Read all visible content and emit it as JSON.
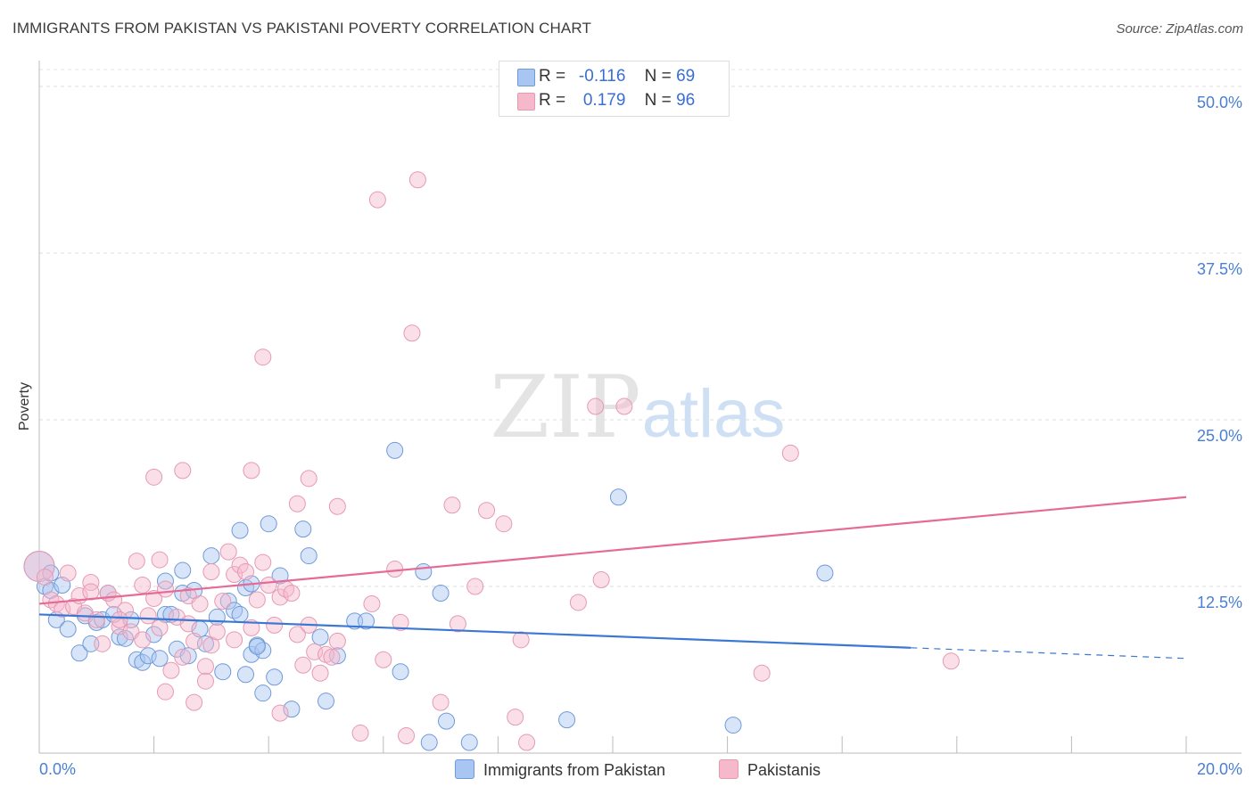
{
  "title": "IMMIGRANTS FROM PAKISTAN VS PAKISTANI POVERTY CORRELATION CHART",
  "source": "Source: ZipAtlas.com",
  "watermark": {
    "zip": "ZIP",
    "atlas": "atlas"
  },
  "legend_top": {
    "rows": [
      {
        "r_label": "R =",
        "r_value": "-0.116",
        "n_label": "N =",
        "n_value": "69",
        "color": "#a9c6f2"
      },
      {
        "r_label": "R =",
        "r_value": "0.179",
        "n_label": "N =",
        "n_value": "96",
        "color": "#f6b9cc"
      }
    ]
  },
  "legend_bottom": [
    {
      "label": "Immigrants from Pakistan",
      "color": "#a9c6f2"
    },
    {
      "label": "Pakistanis",
      "color": "#f6b9cc"
    }
  ],
  "chart_data": {
    "type": "scatter",
    "title": "IMMIGRANTS FROM PAKISTAN VS PAKISTANI POVERTY CORRELATION CHART",
    "xlabel": "",
    "ylabel": "Poverty",
    "xlim": [
      0,
      20
    ],
    "ylim": [
      0,
      50
    ],
    "x_tick_labels": [
      "0.0%",
      "20.0%"
    ],
    "y_ticks": [
      12.5,
      25.0,
      37.5,
      50.0
    ],
    "y_tick_labels": [
      "12.5%",
      "25.0%",
      "37.5%",
      "50.0%"
    ],
    "grid": "horizontal-dashed",
    "colors": {
      "blue": "#3b78d4",
      "pink": "#e56b97",
      "blue_fill": "#a9c6f2",
      "pink_fill": "#f6b9cc"
    },
    "series": [
      {
        "name": "Immigrants from Pakistan",
        "trend": {
          "x0": 0,
          "y0": 10.4,
          "x1": 15.2,
          "y1": 7.9,
          "dash_x1": 20,
          "dash_y1": 7.1
        },
        "points": [
          [
            0.0,
            14.0
          ],
          [
            0.1,
            12.5
          ],
          [
            0.2,
            12.2
          ],
          [
            0.3,
            10.0
          ],
          [
            0.5,
            9.3
          ],
          [
            0.7,
            7.5
          ],
          [
            0.8,
            10.3
          ],
          [
            0.9,
            8.2
          ],
          [
            1.0,
            9.8
          ],
          [
            1.1,
            10.0
          ],
          [
            1.2,
            12.0
          ],
          [
            1.3,
            10.4
          ],
          [
            1.4,
            8.7
          ],
          [
            1.5,
            8.6
          ],
          [
            1.6,
            10.0
          ],
          [
            1.7,
            7.0
          ],
          [
            1.8,
            6.8
          ],
          [
            1.9,
            7.3
          ],
          [
            2.0,
            8.9
          ],
          [
            2.1,
            7.1
          ],
          [
            2.2,
            10.4
          ],
          [
            2.3,
            10.4
          ],
          [
            2.4,
            7.8
          ],
          [
            2.5,
            12.0
          ],
          [
            2.5,
            13.7
          ],
          [
            2.6,
            7.3
          ],
          [
            2.7,
            12.2
          ],
          [
            2.8,
            9.3
          ],
          [
            2.9,
            8.2
          ],
          [
            3.0,
            14.8
          ],
          [
            3.1,
            10.2
          ],
          [
            3.2,
            6.1
          ],
          [
            3.3,
            11.4
          ],
          [
            3.4,
            10.7
          ],
          [
            3.5,
            10.4
          ],
          [
            3.6,
            5.9
          ],
          [
            3.7,
            7.4
          ],
          [
            3.8,
            8.1
          ],
          [
            3.9,
            7.7
          ],
          [
            3.5,
            16.7
          ],
          [
            3.6,
            12.4
          ],
          [
            3.7,
            12.7
          ],
          [
            3.8,
            8.0
          ],
          [
            3.9,
            4.5
          ],
          [
            4.0,
            17.2
          ],
          [
            4.1,
            5.7
          ],
          [
            4.2,
            13.3
          ],
          [
            4.4,
            3.3
          ],
          [
            4.6,
            16.8
          ],
          [
            4.7,
            14.8
          ],
          [
            4.9,
            8.7
          ],
          [
            5.0,
            3.9
          ],
          [
            5.2,
            7.3
          ],
          [
            5.5,
            9.9
          ],
          [
            5.7,
            9.9
          ],
          [
            6.2,
            22.7
          ],
          [
            6.3,
            6.1
          ],
          [
            6.7,
            13.6
          ],
          [
            6.8,
            0.8
          ],
          [
            7.0,
            12.0
          ],
          [
            7.1,
            2.4
          ],
          [
            7.5,
            0.8
          ],
          [
            9.2,
            2.5
          ],
          [
            10.1,
            19.2
          ],
          [
            12.1,
            2.1
          ],
          [
            13.7,
            13.5
          ],
          [
            0.2,
            13.5
          ],
          [
            0.4,
            12.6
          ],
          [
            2.2,
            12.9
          ]
        ]
      },
      {
        "name": "Pakistanis",
        "trend": {
          "x0": 0,
          "y0": 11.2,
          "x1": 20,
          "y1": 19.2
        },
        "points": [
          [
            0.0,
            14.0
          ],
          [
            0.1,
            13.2
          ],
          [
            0.2,
            11.5
          ],
          [
            0.3,
            11.2
          ],
          [
            0.4,
            10.8
          ],
          [
            0.5,
            13.5
          ],
          [
            0.6,
            11.0
          ],
          [
            0.7,
            11.8
          ],
          [
            0.8,
            10.5
          ],
          [
            0.9,
            12.8
          ],
          [
            1.0,
            10.0
          ],
          [
            1.1,
            8.2
          ],
          [
            1.2,
            12.0
          ],
          [
            1.3,
            11.5
          ],
          [
            1.4,
            9.5
          ],
          [
            1.5,
            10.7
          ],
          [
            1.6,
            9.1
          ],
          [
            1.7,
            14.4
          ],
          [
            1.8,
            8.5
          ],
          [
            1.9,
            10.3
          ],
          [
            2.0,
            11.6
          ],
          [
            2.1,
            9.4
          ],
          [
            2.2,
            12.3
          ],
          [
            2.3,
            6.2
          ],
          [
            2.4,
            10.2
          ],
          [
            2.5,
            7.2
          ],
          [
            2.6,
            11.8
          ],
          [
            2.7,
            8.4
          ],
          [
            2.8,
            11.2
          ],
          [
            2.9,
            6.5
          ],
          [
            3.0,
            8.1
          ],
          [
            3.1,
            9.1
          ],
          [
            3.2,
            11.4
          ],
          [
            3.3,
            15.1
          ],
          [
            3.4,
            13.4
          ],
          [
            3.5,
            14.1
          ],
          [
            3.6,
            13.6
          ],
          [
            3.7,
            9.4
          ],
          [
            3.8,
            11.5
          ],
          [
            3.9,
            14.3
          ],
          [
            4.0,
            12.6
          ],
          [
            4.1,
            9.6
          ],
          [
            4.2,
            11.7
          ],
          [
            4.3,
            12.3
          ],
          [
            4.4,
            12.0
          ],
          [
            4.5,
            8.9
          ],
          [
            4.6,
            6.6
          ],
          [
            4.7,
            9.6
          ],
          [
            4.8,
            7.6
          ],
          [
            4.9,
            6.0
          ],
          [
            5.0,
            7.4
          ],
          [
            5.1,
            7.2
          ],
          [
            5.2,
            8.4
          ],
          [
            2.0,
            20.7
          ],
          [
            2.5,
            21.2
          ],
          [
            3.7,
            21.2
          ],
          [
            4.5,
            18.7
          ],
          [
            4.7,
            20.6
          ],
          [
            5.2,
            18.5
          ],
          [
            2.9,
            5.4
          ],
          [
            2.7,
            3.8
          ],
          [
            2.2,
            4.6
          ],
          [
            4.2,
            3.0
          ],
          [
            5.6,
            1.5
          ],
          [
            6.4,
            1.3
          ],
          [
            6.0,
            7.0
          ],
          [
            6.3,
            9.8
          ],
          [
            7.0,
            3.8
          ],
          [
            7.3,
            9.7
          ],
          [
            5.8,
            11.2
          ],
          [
            6.2,
            13.8
          ],
          [
            7.2,
            18.6
          ],
          [
            7.6,
            12.5
          ],
          [
            7.8,
            18.2
          ],
          [
            8.1,
            17.2
          ],
          [
            8.3,
            2.7
          ],
          [
            8.4,
            8.5
          ],
          [
            8.5,
            0.8
          ],
          [
            9.4,
            11.3
          ],
          [
            9.8,
            13.0
          ],
          [
            9.7,
            26.0
          ],
          [
            10.2,
            26.0
          ],
          [
            5.9,
            41.5
          ],
          [
            6.6,
            43.0
          ],
          [
            6.5,
            31.5
          ],
          [
            3.9,
            29.7
          ],
          [
            12.6,
            6.0
          ],
          [
            13.1,
            22.5
          ],
          [
            15.9,
            6.9
          ],
          [
            0.9,
            12.1
          ],
          [
            1.4,
            10.0
          ],
          [
            2.6,
            9.7
          ],
          [
            3.0,
            13.6
          ],
          [
            3.4,
            8.5
          ],
          [
            1.8,
            12.6
          ],
          [
            2.1,
            14.5
          ]
        ]
      }
    ]
  }
}
